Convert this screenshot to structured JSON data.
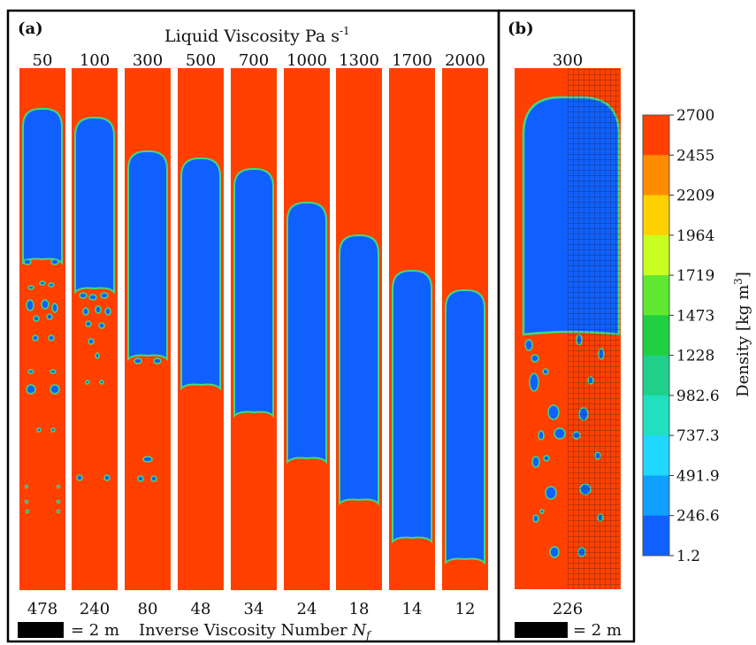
{
  "panel_a": {
    "label": "(a)",
    "top_title": "Liquid Viscosity Pa s",
    "top_title_exp": "-1",
    "viscosities": [
      "50",
      "100",
      "300",
      "500",
      "700",
      "1000",
      "1300",
      "1700",
      "2000"
    ],
    "inverse_numbers": [
      "478",
      "240",
      "80",
      "48",
      "34",
      "24",
      "18",
      "14",
      "12"
    ],
    "bottom_title": "Inverse Viscosity Number",
    "bottom_symbol": "N",
    "bottom_symbol_sub": "f",
    "scale_label": "= 2 m"
  },
  "panel_b": {
    "label": "(b)",
    "viscosity": "300",
    "inverse_number": "226",
    "scale_label": "= 2 m"
  },
  "colorbar": {
    "title": "Density [kg m",
    "title_exp": "3",
    "title_end": "]",
    "ticks": [
      "2700",
      "2455",
      "2209",
      "1964",
      "1719",
      "1473",
      "1228",
      "982.6",
      "737.3",
      "491.9",
      "246.6",
      "1.2"
    ],
    "colors": [
      "#ff4000",
      "#ff8c00",
      "#ffd000",
      "#c8ff20",
      "#60e830",
      "#20d040",
      "#20d08a",
      "#20e0c0",
      "#20d8ff",
      "#10a0ff",
      "#1060ff"
    ]
  },
  "colors": {
    "liquid": "#ff4000",
    "gas": "#1060ff",
    "interface": "#40d880",
    "frame": "#000000"
  }
}
